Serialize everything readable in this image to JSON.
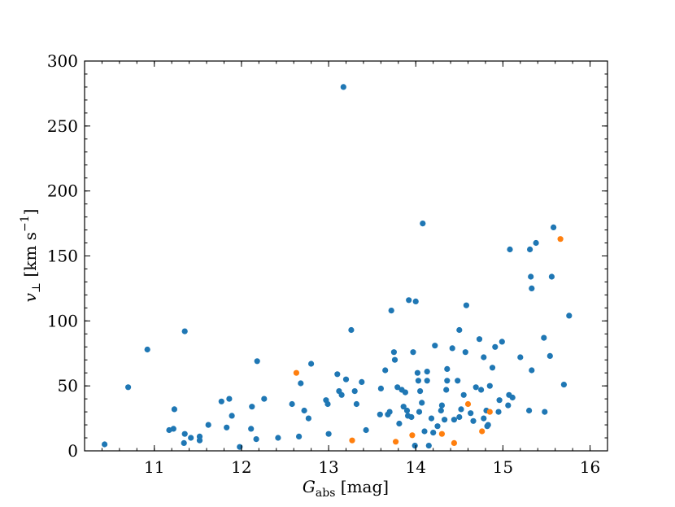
{
  "chart_data": {
    "type": "scatter",
    "xlabel": "G_abs [mag]",
    "xlabel_main": "G",
    "xlabel_sub": "abs",
    "xlabel_unit": " [mag]",
    "ylabel_main": "v",
    "ylabel_sub": "⊥",
    "ylabel_unit": " [km s",
    "ylabel_exp": "−1",
    "ylabel_close": "]",
    "xlim": [
      10.2,
      16.2
    ],
    "ylim": [
      0,
      300
    ],
    "xticks": [
      11,
      12,
      13,
      14,
      15,
      16
    ],
    "yticks": [
      0,
      50,
      100,
      150,
      200,
      250,
      300
    ],
    "x_minor_step": 0.2,
    "y_minor_step": 10,
    "grid": false,
    "series": [
      {
        "color": "#1f77b4",
        "points": [
          [
            10.43,
            5
          ],
          [
            10.7,
            49
          ],
          [
            10.92,
            78
          ],
          [
            11.17,
            16
          ],
          [
            11.22,
            17
          ],
          [
            11.23,
            32
          ],
          [
            11.34,
            6
          ],
          [
            11.35,
            13
          ],
          [
            11.35,
            92
          ],
          [
            11.42,
            10
          ],
          [
            11.52,
            8
          ],
          [
            11.52,
            11
          ],
          [
            11.62,
            20
          ],
          [
            11.77,
            38
          ],
          [
            11.83,
            18
          ],
          [
            11.86,
            40
          ],
          [
            11.89,
            27
          ],
          [
            11.98,
            3
          ],
          [
            12.11,
            17
          ],
          [
            12.12,
            34
          ],
          [
            12.17,
            9
          ],
          [
            12.18,
            69
          ],
          [
            12.26,
            40
          ],
          [
            12.42,
            10
          ],
          [
            12.58,
            36
          ],
          [
            12.66,
            11
          ],
          [
            12.68,
            52
          ],
          [
            12.72,
            31
          ],
          [
            12.77,
            25
          ],
          [
            12.8,
            67
          ],
          [
            12.97,
            39
          ],
          [
            12.99,
            36
          ],
          [
            13.0,
            13
          ],
          [
            13.1,
            59
          ],
          [
            13.12,
            46
          ],
          [
            13.15,
            43
          ],
          [
            13.17,
            280
          ],
          [
            13.2,
            55
          ],
          [
            13.26,
            93
          ],
          [
            13.3,
            46
          ],
          [
            13.32,
            36
          ],
          [
            13.38,
            53
          ],
          [
            13.43,
            16
          ],
          [
            13.59,
            28
          ],
          [
            13.6,
            48
          ],
          [
            13.65,
            62
          ],
          [
            13.68,
            28
          ],
          [
            13.7,
            30
          ],
          [
            13.72,
            108
          ],
          [
            13.75,
            76
          ],
          [
            13.76,
            70
          ],
          [
            13.79,
            49
          ],
          [
            13.81,
            21
          ],
          [
            13.84,
            47
          ],
          [
            13.86,
            34
          ],
          [
            13.88,
            45
          ],
          [
            13.9,
            31
          ],
          [
            13.91,
            27
          ],
          [
            13.92,
            116
          ],
          [
            13.95,
            26
          ],
          [
            13.97,
            76
          ],
          [
            13.99,
            4
          ],
          [
            14.0,
            115
          ],
          [
            14.02,
            60
          ],
          [
            14.03,
            54
          ],
          [
            14.04,
            30
          ],
          [
            14.05,
            46
          ],
          [
            14.07,
            37
          ],
          [
            14.08,
            175
          ],
          [
            14.1,
            15
          ],
          [
            14.13,
            61
          ],
          [
            14.13,
            54
          ],
          [
            14.15,
            4
          ],
          [
            14.18,
            25
          ],
          [
            14.2,
            14
          ],
          [
            14.22,
            81
          ],
          [
            14.25,
            19
          ],
          [
            14.29,
            31
          ],
          [
            14.3,
            35
          ],
          [
            14.33,
            24
          ],
          [
            14.35,
            47
          ],
          [
            14.36,
            54
          ],
          [
            14.36,
            63
          ],
          [
            14.42,
            79
          ],
          [
            14.44,
            24
          ],
          [
            14.48,
            54
          ],
          [
            14.5,
            26
          ],
          [
            14.5,
            93
          ],
          [
            14.52,
            32
          ],
          [
            14.55,
            43
          ],
          [
            14.57,
            76
          ],
          [
            14.58,
            112
          ],
          [
            14.63,
            29
          ],
          [
            14.66,
            23
          ],
          [
            14.69,
            49
          ],
          [
            14.73,
            86
          ],
          [
            14.75,
            47
          ],
          [
            14.78,
            25
          ],
          [
            14.78,
            72
          ],
          [
            14.81,
            31
          ],
          [
            14.82,
            19
          ],
          [
            14.83,
            20
          ],
          [
            14.85,
            50
          ],
          [
            14.88,
            64
          ],
          [
            14.91,
            80
          ],
          [
            14.95,
            30
          ],
          [
            14.96,
            39
          ],
          [
            14.99,
            84
          ],
          [
            15.06,
            35
          ],
          [
            15.07,
            43
          ],
          [
            15.08,
            155
          ],
          [
            15.11,
            41
          ],
          [
            15.2,
            72
          ],
          [
            15.3,
            31
          ],
          [
            15.31,
            155
          ],
          [
            15.32,
            134
          ],
          [
            15.33,
            62
          ],
          [
            15.33,
            125
          ],
          [
            15.38,
            160
          ],
          [
            15.47,
            87
          ],
          [
            15.48,
            30
          ],
          [
            15.54,
            73
          ],
          [
            15.56,
            134
          ],
          [
            15.58,
            172
          ],
          [
            15.7,
            51
          ],
          [
            15.76,
            104
          ]
        ]
      },
      {
        "color": "#ff7f0e",
        "points": [
          [
            12.63,
            60
          ],
          [
            13.27,
            8
          ],
          [
            13.77,
            7
          ],
          [
            13.96,
            12
          ],
          [
            14.3,
            13
          ],
          [
            14.44,
            6
          ],
          [
            14.6,
            36
          ],
          [
            14.76,
            15
          ],
          [
            14.85,
            30
          ],
          [
            15.66,
            163
          ]
        ]
      }
    ]
  }
}
